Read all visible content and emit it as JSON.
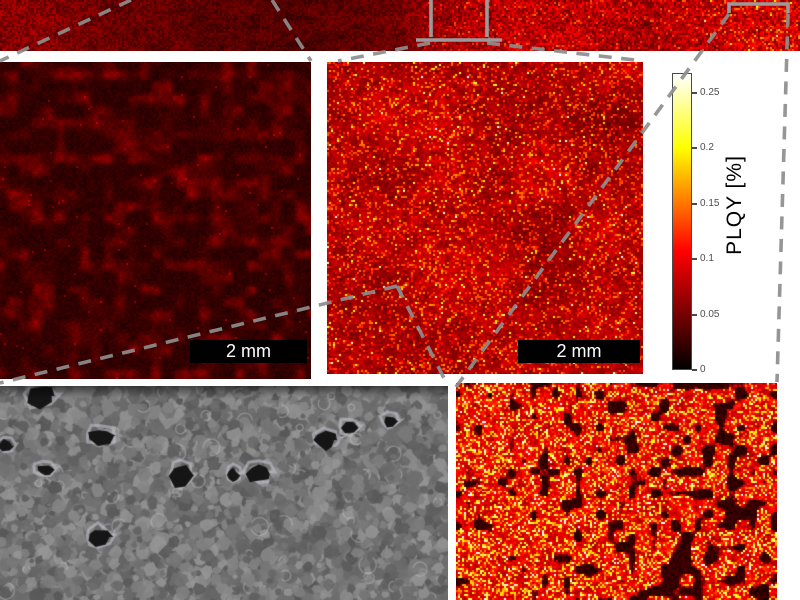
{
  "colorbar": {
    "label": "PLQY [%]",
    "ticks": [
      {
        "value": 0,
        "label": "0"
      },
      {
        "value": 0.05,
        "label": "0.05"
      },
      {
        "value": 0.1,
        "label": "0.1"
      },
      {
        "value": 0.15,
        "label": "0.15"
      },
      {
        "value": 0.2,
        "label": "0.2"
      },
      {
        "value": 0.25,
        "label": "0.25"
      }
    ],
    "max_value": 0.268,
    "colormap": "hot",
    "stop_colors": [
      "#000000",
      "#800000",
      "#ff0000",
      "#ff8000",
      "#ffff00",
      "#ffffff"
    ]
  },
  "scalebars": {
    "left": "2 mm",
    "center": "2 mm"
  },
  "colors": {
    "annotation_gray": "#8d8d8d",
    "scalebar_bg": "#000000",
    "scalebar_text": "#ffffff",
    "background": "#ffffff"
  }
}
